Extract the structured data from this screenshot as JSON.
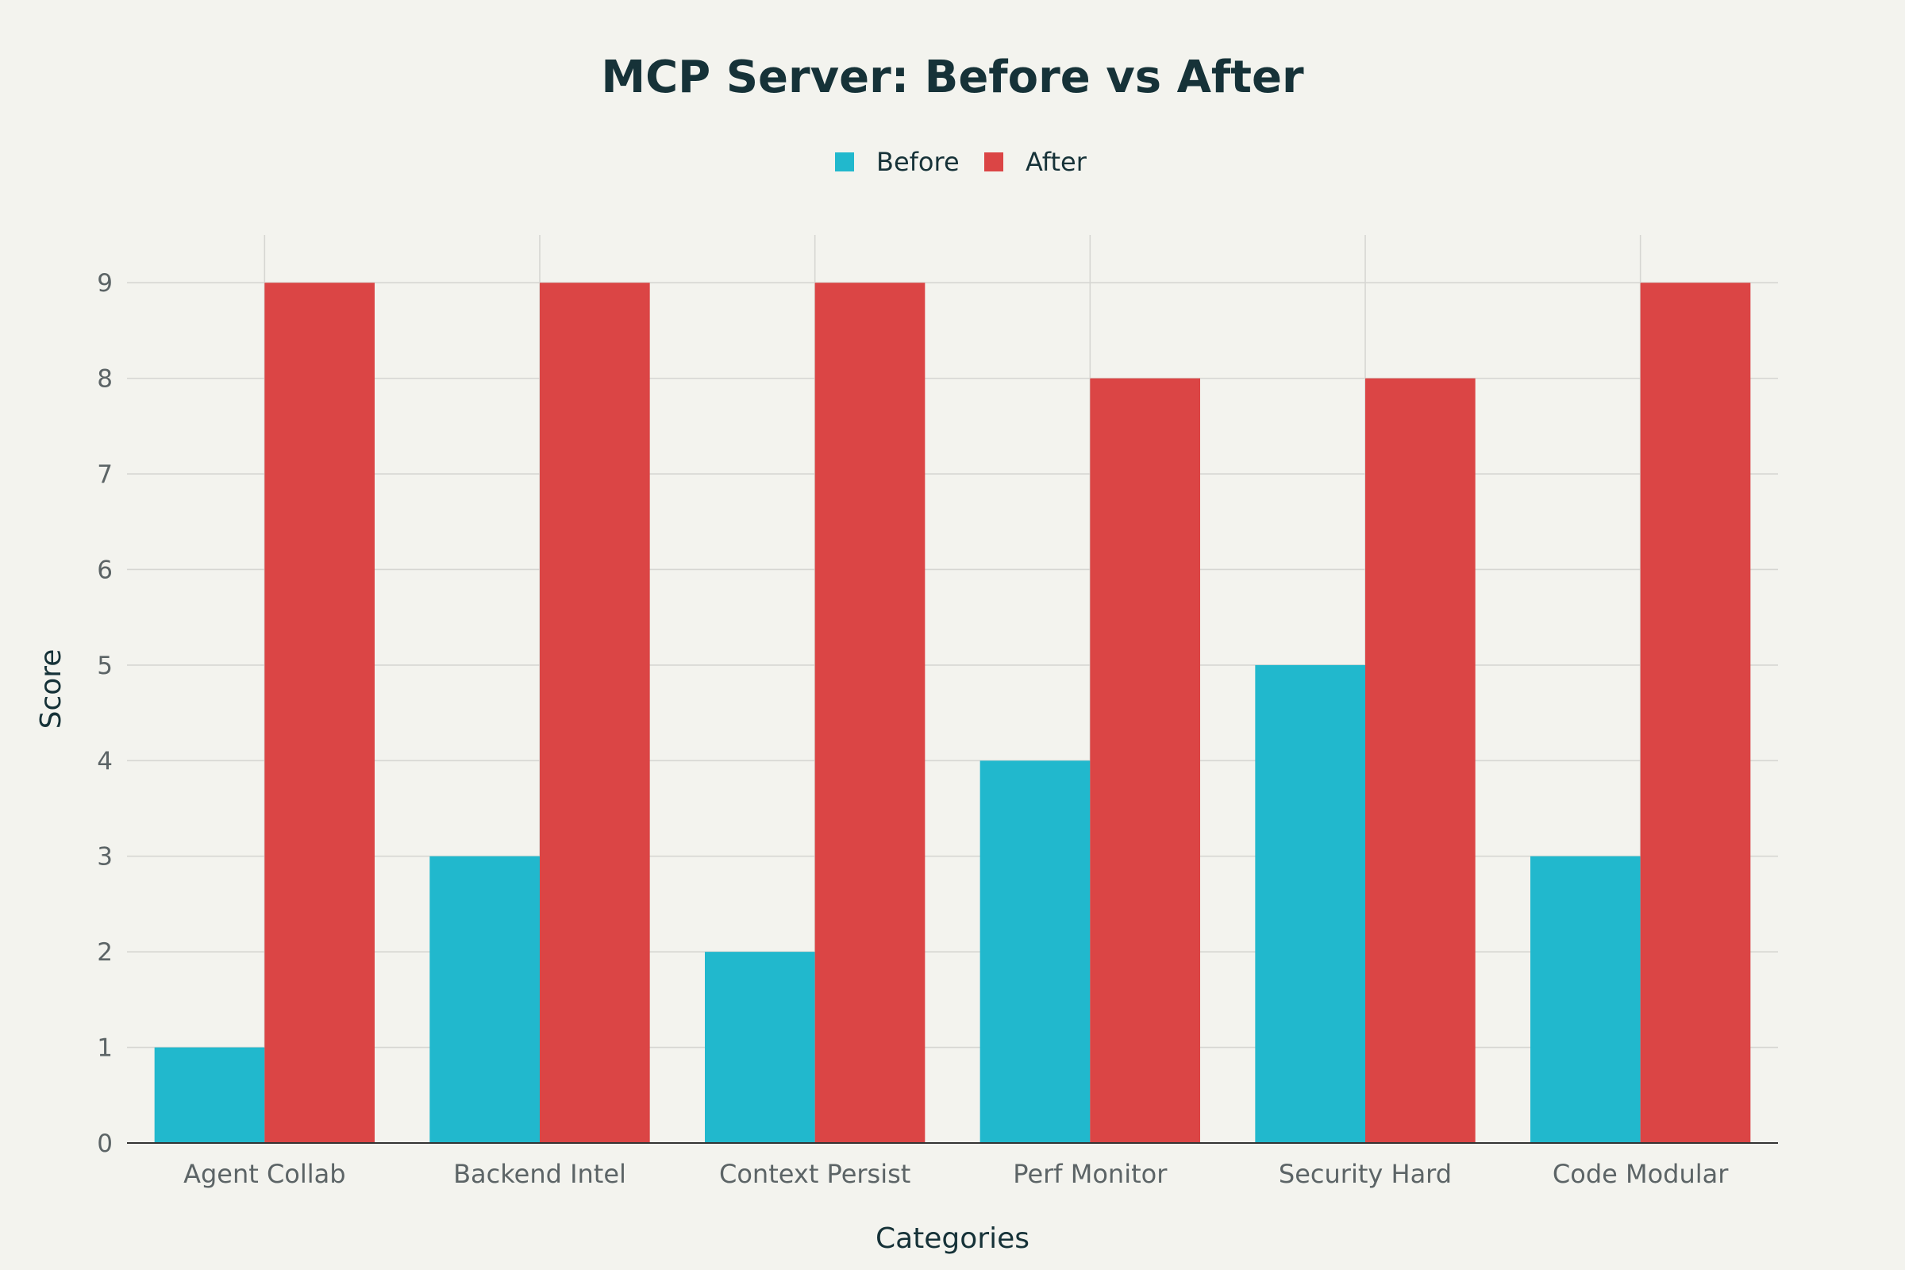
{
  "chart_data": {
    "type": "bar",
    "title": "MCP Server: Before vs After",
    "xlabel": "Categories",
    "ylabel": "Score",
    "categories": [
      "Agent Collab",
      "Backend Intel",
      "Context Persist",
      "Perf Monitor",
      "Security Hard",
      "Code Modular"
    ],
    "series": [
      {
        "name": "Before",
        "color": "#21b8cd",
        "values": [
          1,
          3,
          2,
          4,
          5,
          3
        ]
      },
      {
        "name": "After",
        "color": "#db4545",
        "values": [
          9,
          9,
          9,
          8,
          8,
          9
        ]
      }
    ],
    "ylim": [
      0,
      9.5
    ],
    "yticks": [
      "0",
      "1",
      "2",
      "3",
      "4",
      "5",
      "6",
      "7",
      "8",
      "9"
    ],
    "grid": true,
    "legend_position": "top-center"
  }
}
